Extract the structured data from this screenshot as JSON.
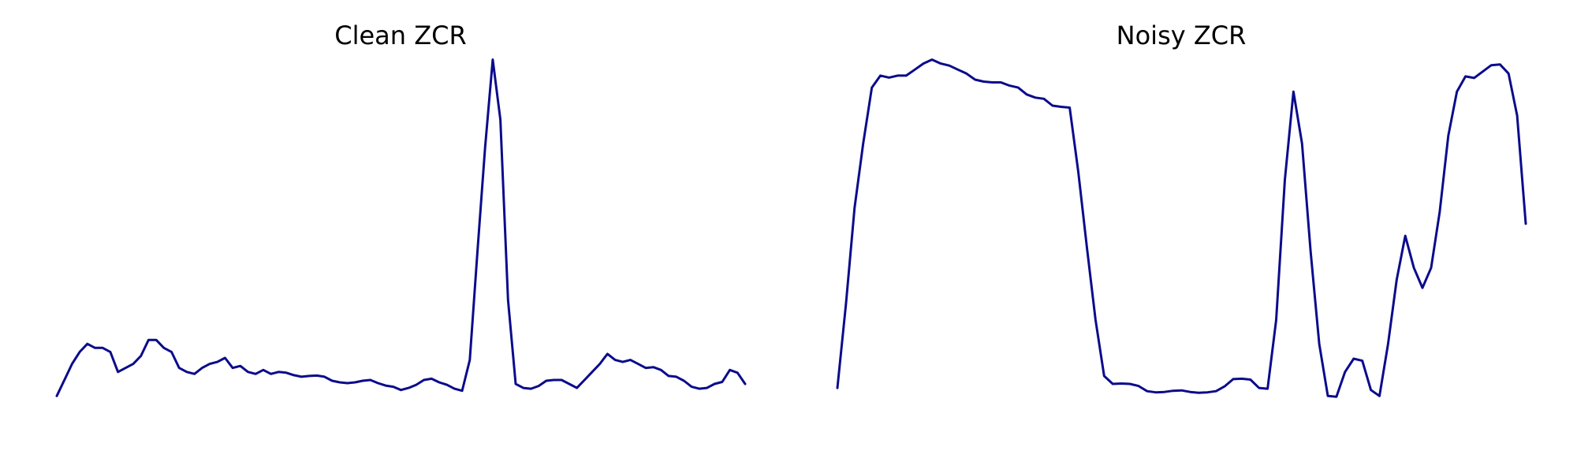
{
  "colors": {
    "line": "#0b0b8c",
    "background": "#ffffff"
  },
  "chart_data": [
    {
      "type": "line",
      "title": "Clean ZCR",
      "xlabel": "",
      "ylabel": "",
      "axes_visible": false,
      "grid": false,
      "ylim": [
        0,
        1
      ],
      "series": [
        {
          "name": "Clean ZCR",
          "values": [
            0.09,
            0.13,
            0.17,
            0.2,
            0.22,
            0.21,
            0.21,
            0.2,
            0.15,
            0.16,
            0.17,
            0.19,
            0.23,
            0.23,
            0.21,
            0.2,
            0.16,
            0.15,
            0.145,
            0.16,
            0.17,
            0.175,
            0.185,
            0.16,
            0.165,
            0.15,
            0.145,
            0.155,
            0.145,
            0.15,
            0.148,
            0.142,
            0.138,
            0.14,
            0.141,
            0.138,
            0.128,
            0.124,
            0.122,
            0.124,
            0.128,
            0.13,
            0.122,
            0.116,
            0.113,
            0.105,
            0.11,
            0.118,
            0.13,
            0.133,
            0.124,
            0.118,
            0.108,
            0.103,
            0.18,
            0.45,
            0.71,
            0.93,
            0.78,
            0.33,
            0.12,
            0.11,
            0.108,
            0.115,
            0.128,
            0.13,
            0.13,
            0.12,
            0.11,
            0.13,
            0.15,
            0.17,
            0.195,
            0.18,
            0.175,
            0.18,
            0.17,
            0.16,
            0.162,
            0.155,
            0.14,
            0.138,
            0.128,
            0.113,
            0.108,
            0.11,
            0.12,
            0.125,
            0.155,
            0.148,
            0.12
          ]
        }
      ]
    },
    {
      "type": "line",
      "title": "Noisy ZCR",
      "xlabel": "",
      "ylabel": "",
      "axes_visible": false,
      "grid": false,
      "ylim": [
        0,
        1
      ],
      "series": [
        {
          "name": "Noisy ZCR",
          "values": [
            0.11,
            0.32,
            0.56,
            0.72,
            0.86,
            0.89,
            0.885,
            0.89,
            0.89,
            0.905,
            0.92,
            0.93,
            0.92,
            0.915,
            0.905,
            0.895,
            0.88,
            0.875,
            0.873,
            0.873,
            0.865,
            0.86,
            0.843,
            0.835,
            0.832,
            0.815,
            0.812,
            0.81,
            0.65,
            0.46,
            0.28,
            0.14,
            0.12,
            0.121,
            0.12,
            0.115,
            0.102,
            0.099,
            0.1,
            0.103,
            0.104,
            0.1,
            0.098,
            0.099,
            0.102,
            0.114,
            0.132,
            0.133,
            0.131,
            0.11,
            0.108,
            0.28,
            0.63,
            0.85,
            0.72,
            0.45,
            0.22,
            0.09,
            0.088,
            0.15,
            0.183,
            0.178,
            0.105,
            0.09,
            0.22,
            0.38,
            0.49,
            0.41,
            0.36,
            0.41,
            0.55,
            0.74,
            0.85,
            0.888,
            0.884,
            0.9,
            0.916,
            0.918,
            0.895,
            0.79,
            0.52
          ]
        }
      ]
    }
  ]
}
